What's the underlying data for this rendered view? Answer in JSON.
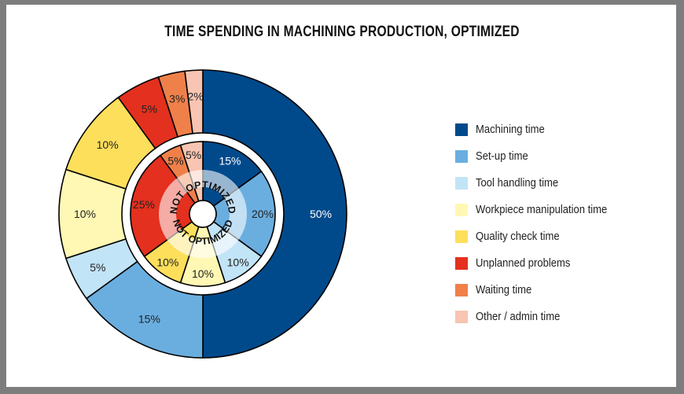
{
  "chart_data": {
    "type": "pie",
    "title": "TIME SPENDING IN MACHINING PRODUCTION, OPTIMIZED",
    "categories": [
      "Machining time",
      "Set-up time",
      "Tool handling time",
      "Workpiece manipulation time",
      "Quality check time",
      "Unplanned problems",
      "Waiting time",
      "Other / admin time"
    ],
    "colors": [
      "#004a8c",
      "#6aaee0",
      "#c2e4f7",
      "#fff8b4",
      "#fddf5c",
      "#e4301e",
      "#f0804a",
      "#f7c5b1"
    ],
    "series": [
      {
        "name": "OPTIMIZED",
        "values": [
          50,
          15,
          5,
          10,
          10,
          5,
          3,
          2
        ],
        "labels": [
          "50%",
          "15%",
          "5%",
          "10%",
          "10%",
          "5%",
          "3%",
          "2%"
        ]
      },
      {
        "name": "NOT OPTIMIZED",
        "values": [
          15,
          20,
          10,
          10,
          10,
          25,
          5,
          5
        ],
        "labels": [
          "15%",
          "20%",
          "10%",
          "10%",
          "10%",
          "25%",
          "5%",
          "5%"
        ]
      }
    ],
    "inner_ring_text": "NOT OPTIMIZED",
    "legend_position": "right"
  }
}
